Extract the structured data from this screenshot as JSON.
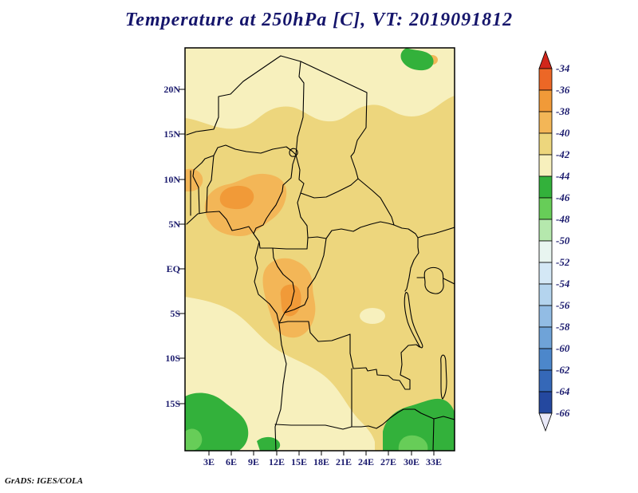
{
  "title": "Temperature at 250hPa [C], VT: 2019091812",
  "credit": "GrADS: IGES/COLA",
  "axes": {
    "lat_ticks": [
      "20N",
      "15N",
      "10N",
      "5N",
      "EQ",
      "5S",
      "10S",
      "15S"
    ],
    "lon_ticks": [
      "3E",
      "6E",
      "9E",
      "12E",
      "15E",
      "18E",
      "21E",
      "24E",
      "27E",
      "30E",
      "33E"
    ]
  },
  "colorbar": {
    "labels": [
      "-34",
      "-36",
      "-38",
      "-40",
      "-42",
      "-44",
      "-46",
      "-48",
      "-50",
      "-52",
      "-54",
      "-56",
      "-58",
      "-60",
      "-62",
      "-64",
      "-66"
    ],
    "colors": [
      "#d1261b",
      "#ec6726",
      "#f19a38",
      "#f3b657",
      "#edd67d",
      "#f7f0bd",
      "#33b13b",
      "#67cd58",
      "#b5e8ad",
      "#e8f5f0",
      "#d4e8f6",
      "#b4d4ee",
      "#92bce4",
      "#6fa3d8",
      "#4c87cb",
      "#3568b8",
      "#24489f",
      "#e9e9f8"
    ]
  },
  "colors": {
    "title_text": "#15156b",
    "axis_text": "#1b1b6e",
    "map_border": "#000000",
    "background": "#ffffff",
    "field_main": "#edd67d",
    "field_pale": "#f7f0bd",
    "field_warm": "#f3b657",
    "field_warm_core": "#f19a38",
    "field_cold": "#33b13b",
    "field_cold_light": "#67cd58"
  },
  "chart_data": {
    "type": "heatmap",
    "variable": "Temperature",
    "level": "250hPa",
    "units": "C",
    "valid_time": "2019091812",
    "title": "Temperature at 250hPa [C], VT: 2019091812",
    "lon_range_deg_east": [
      0,
      36
    ],
    "lat_range_deg": [
      -20.5,
      24.7
    ],
    "contour_interval": 2,
    "levels": [
      -34,
      -36,
      -38,
      -40,
      -42,
      -44,
      -46,
      -48,
      -50,
      -52,
      -54,
      -56,
      -58,
      -60,
      -62,
      -64,
      -66
    ],
    "legend_position": "right-colorbar",
    "grid": {
      "lons_e": [
        3,
        9,
        15,
        21,
        27,
        33
      ],
      "lats": [
        20,
        15,
        10,
        5,
        0,
        -5,
        -10,
        -15,
        -20
      ],
      "values_c": [
        [
          -43,
          -43,
          -43,
          -42,
          -42,
          -43
        ],
        [
          -42,
          -42,
          -41,
          -41,
          -41,
          -41
        ],
        [
          -40,
          -39,
          -41,
          -41,
          -41,
          -41
        ],
        [
          -39,
          -39,
          -40,
          -41,
          -41,
          -41
        ],
        [
          -41,
          -40,
          -39,
          -41,
          -41,
          -41
        ],
        [
          -42,
          -41,
          -39,
          -41,
          -41,
          -42
        ],
        [
          -42,
          -42,
          -41,
          -41,
          -41,
          -42
        ],
        [
          -44,
          -43,
          -42,
          -42,
          -43,
          -45
        ],
        [
          -45,
          -44,
          -43,
          -43,
          -44,
          -46
        ]
      ]
    },
    "features": [
      "pale band (-42 to -44 C) across the far north of the domain",
      "warm patch (-38 to -40 C, core -36 to -38 C) over southern Nigeria/Cameroon near 5-10N, 3-13E",
      "warm patch (-38 to -40 C, core -36 to -38 C) over Gabon/Congo near 0-8S, 10-17E",
      "pale region (-42 to -44 C) covering the southwest quarter",
      "cold green areas (-44 to -48 C) in the far southwest corner, the southeast corner and a small patch near 30-33E at the northern edge"
    ]
  }
}
